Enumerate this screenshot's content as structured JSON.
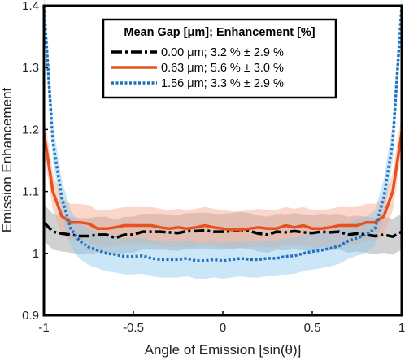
{
  "chart_data": {
    "type": "line",
    "xlabel": "Angle of Emission [sin(θ)]",
    "ylabel": "Emission Enhancement",
    "xlim": [
      -1,
      1
    ],
    "ylim": [
      0.9,
      1.4
    ],
    "xticks": [
      -1,
      -0.5,
      0,
      0.5,
      1
    ],
    "xtick_labels": [
      "-1",
      "-0.5",
      "0",
      "0.5",
      "1"
    ],
    "yticks": [
      0.9,
      1.0,
      1.1,
      1.2,
      1.3,
      1.4
    ],
    "ytick_labels": [
      "0.9",
      "1",
      "1.1",
      "1.2",
      "1.3",
      "1.4"
    ],
    "grid": false,
    "legend": {
      "title": "Mean Gap [μm]; Enhancement [%]",
      "position": "top-right"
    },
    "x": [
      -1,
      -0.95,
      -0.9,
      -0.85,
      -0.8,
      -0.75,
      -0.7,
      -0.65,
      -0.6,
      -0.55,
      -0.5,
      -0.45,
      -0.4,
      -0.35,
      -0.3,
      -0.25,
      -0.2,
      -0.15,
      -0.1,
      -0.05,
      0,
      0.05,
      0.1,
      0.15,
      0.2,
      0.25,
      0.3,
      0.35,
      0.4,
      0.45,
      0.5,
      0.55,
      0.6,
      0.65,
      0.7,
      0.75,
      0.8,
      0.85,
      0.9,
      0.95,
      1
    ],
    "series": [
      {
        "name": "0.00 μm; 3.2 % ± 2.9 %",
        "color": "#000000",
        "style": "dashdot",
        "values": [
          1.05,
          1.035,
          1.032,
          1.03,
          1.028,
          1.028,
          1.03,
          1.03,
          1.025,
          1.03,
          1.03,
          1.035,
          1.035,
          1.035,
          1.034,
          1.033,
          1.036,
          1.036,
          1.037,
          1.035,
          1.035,
          1.036,
          1.038,
          1.036,
          1.032,
          1.03,
          1.035,
          1.034,
          1.036,
          1.034,
          1.033,
          1.035,
          1.034,
          1.035,
          1.03,
          1.032,
          1.03,
          1.028,
          1.03,
          1.027,
          1.035
        ],
        "band": 0.029
      },
      {
        "name": "0.63 μm; 5.6 % ± 3.0 %",
        "color": "#e8501e",
        "style": "solid",
        "values": [
          1.195,
          1.1,
          1.06,
          1.05,
          1.05,
          1.048,
          1.04,
          1.04,
          1.042,
          1.045,
          1.045,
          1.045,
          1.045,
          1.042,
          1.04,
          1.042,
          1.04,
          1.042,
          1.045,
          1.042,
          1.04,
          1.038,
          1.038,
          1.04,
          1.042,
          1.04,
          1.04,
          1.045,
          1.042,
          1.045,
          1.04,
          1.04,
          1.042,
          1.045,
          1.045,
          1.045,
          1.05,
          1.05,
          1.06,
          1.1,
          1.195
        ],
        "band": 0.03
      },
      {
        "name": "1.56 μm; 3.3 % ± 2.9 %",
        "color": "#1f6fc1",
        "style": "dotted",
        "values": [
          1.4,
          1.18,
          1.09,
          1.04,
          1.02,
          1.01,
          1.005,
          1.0,
          0.998,
          0.995,
          0.995,
          0.996,
          0.992,
          0.99,
          0.99,
          0.99,
          0.992,
          0.988,
          0.988,
          0.99,
          0.988,
          0.99,
          0.992,
          0.99,
          0.99,
          0.992,
          0.992,
          0.995,
          0.996,
          1.0,
          1.003,
          1.005,
          1.008,
          1.012,
          1.02,
          1.025,
          1.03,
          1.04,
          1.09,
          1.18,
          1.4
        ],
        "band": 0.029
      }
    ]
  }
}
